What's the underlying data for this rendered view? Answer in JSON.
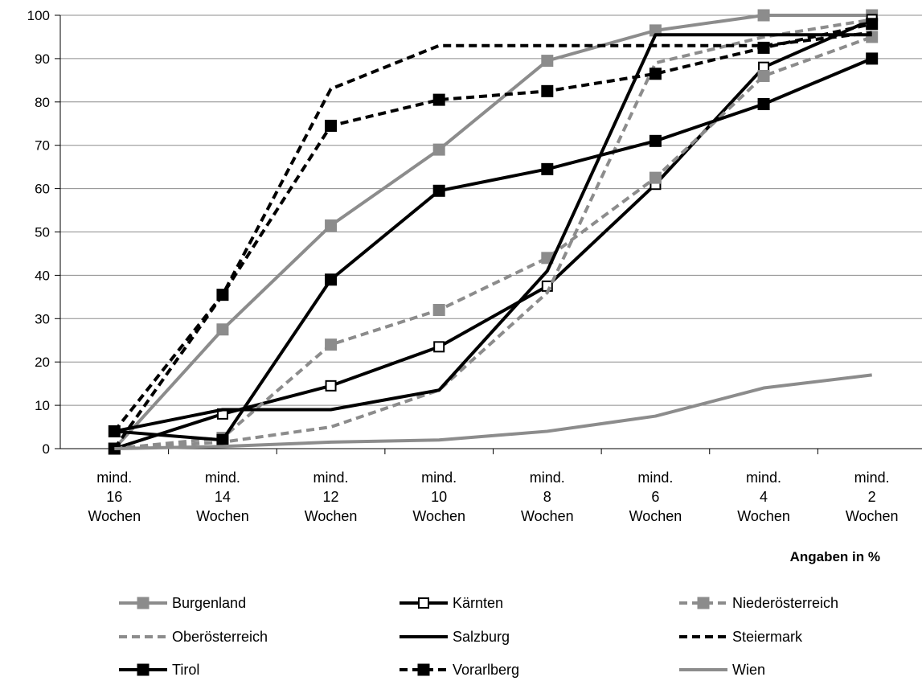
{
  "chart_data": {
    "type": "line",
    "categories": [
      [
        "mind.",
        "16",
        "Wochen"
      ],
      [
        "mind.",
        "14",
        "Wochen"
      ],
      [
        "mind.",
        "12",
        "Wochen"
      ],
      [
        "mind.",
        "10",
        "Wochen"
      ],
      [
        "mind.",
        "8",
        "Wochen"
      ],
      [
        "mind.",
        "6",
        "Wochen"
      ],
      [
        "mind.",
        "4",
        "Wochen"
      ],
      [
        "mind.",
        "2",
        "Wochen"
      ]
    ],
    "ylim": [
      0,
      100
    ],
    "yticks": [
      0,
      10,
      20,
      30,
      40,
      50,
      60,
      70,
      80,
      90,
      100
    ],
    "grid": true,
    "unit_note": "Angaben in %",
    "legend_position": "bottom",
    "series": [
      {
        "name": "Burgenland",
        "values": [
          0,
          27.5,
          51.5,
          69,
          89.5,
          96.5,
          100,
          100
        ],
        "color": "#8c8c8c",
        "dash": "solid",
        "marker": "square-filled"
      },
      {
        "name": "Kärnten",
        "values": [
          0,
          8,
          14.5,
          23.5,
          37.5,
          61,
          88,
          99
        ],
        "color": "#000000",
        "dash": "solid",
        "marker": "square-open"
      },
      {
        "name": "Niederösterreich",
        "values": [
          0,
          2.5,
          24,
          32,
          44,
          62.5,
          86,
          95
        ],
        "color": "#8c8c8c",
        "dash": "dashed",
        "marker": "square-filled"
      },
      {
        "name": "Oberösterreich",
        "values": [
          0,
          1.5,
          5,
          13.5,
          36,
          89,
          95,
          99
        ],
        "color": "#8c8c8c",
        "dash": "dashed",
        "marker": "none"
      },
      {
        "name": "Salzburg",
        "values": [
          4,
          9,
          9,
          13.5,
          41,
          95.5,
          95.5,
          95.5
        ],
        "color": "#000000",
        "dash": "solid",
        "marker": "none"
      },
      {
        "name": "Steiermark",
        "values": [
          4,
          35.5,
          83,
          93,
          93,
          93,
          93,
          96
        ],
        "color": "#000000",
        "dash": "dashed",
        "marker": "none"
      },
      {
        "name": "Tirol",
        "values": [
          4,
          2,
          39,
          59.5,
          64.5,
          71,
          79.5,
          90
        ],
        "color": "#000000",
        "dash": "solid",
        "marker": "square-filled"
      },
      {
        "name": "Vorarlberg",
        "values": [
          0,
          35.5,
          74.5,
          80.5,
          82.5,
          86.5,
          92.5,
          98
        ],
        "color": "#000000",
        "dash": "dashed",
        "marker": "square-filled"
      },
      {
        "name": "Wien",
        "values": [
          0,
          0.5,
          1.5,
          2,
          4,
          7.5,
          14,
          17
        ],
        "color": "#8c8c8c",
        "dash": "solid",
        "marker": "none"
      }
    ]
  }
}
